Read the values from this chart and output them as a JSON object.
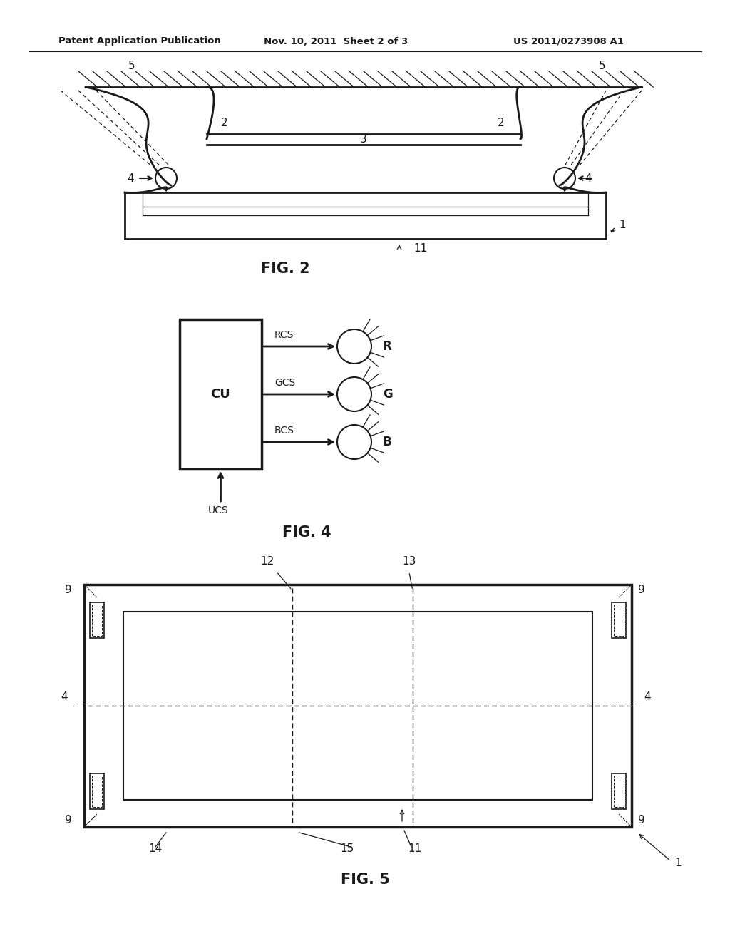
{
  "bg_color": "#ffffff",
  "header_text": "Patent Application Publication",
  "header_date": "Nov. 10, 2011  Sheet 2 of 3",
  "header_patent": "US 2011/0273908 A1",
  "fig2_caption": "FIG. 2",
  "fig4_caption": "FIG. 4",
  "fig5_caption": "FIG. 5",
  "color": "#1a1a1a"
}
